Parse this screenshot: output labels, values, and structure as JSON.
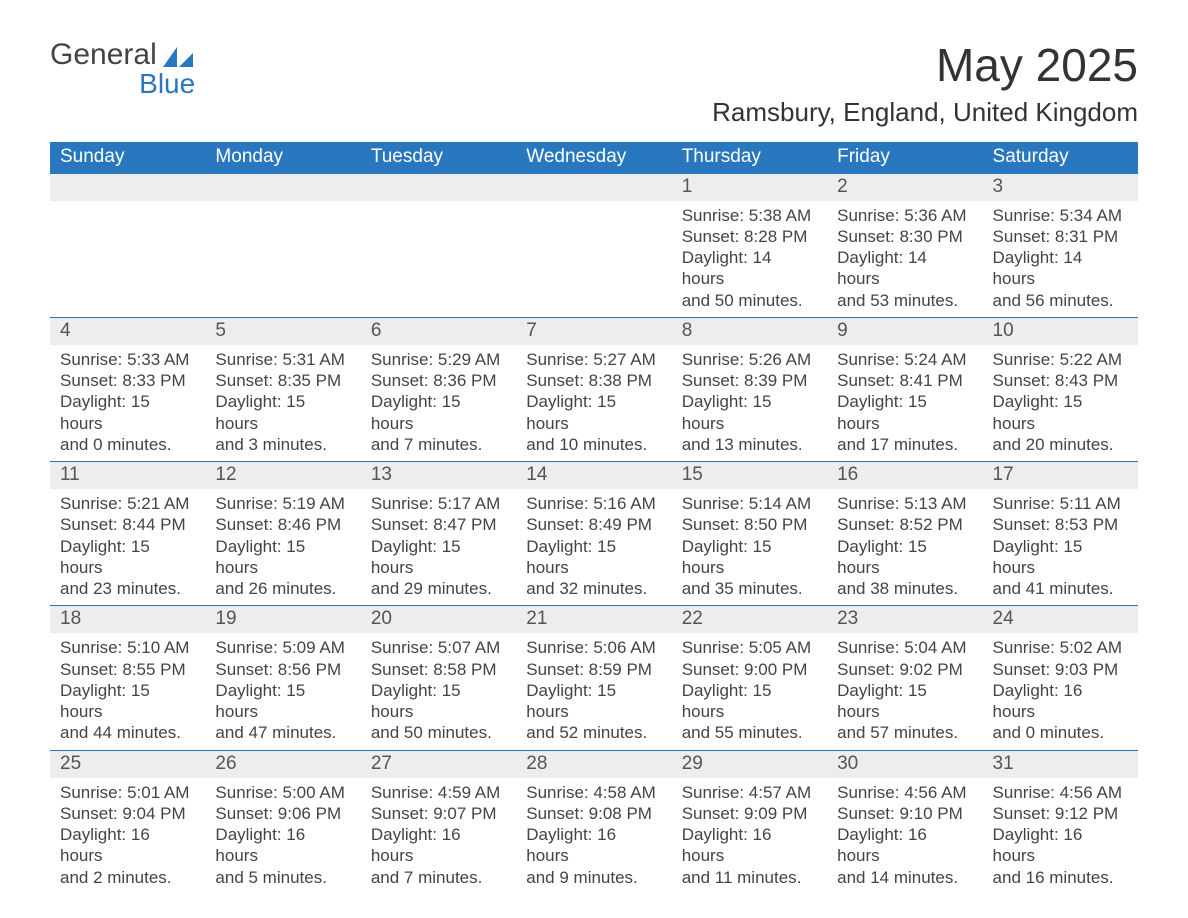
{
  "logo": {
    "word1": "General",
    "word2": "Blue"
  },
  "title": "May 2025",
  "location": "Ramsbury, England, United Kingdom",
  "colors": {
    "header_bg": "#2978bf",
    "header_text": "#ffffff",
    "daynum_bg": "#eceded",
    "body_text": "#444444",
    "rule": "#2978bf",
    "logo_blue": "#2978bf"
  },
  "weekdays": [
    "Sunday",
    "Monday",
    "Tuesday",
    "Wednesday",
    "Thursday",
    "Friday",
    "Saturday"
  ],
  "weeks": [
    [
      null,
      null,
      null,
      null,
      {
        "n": "1",
        "sunrise": "Sunrise: 5:38 AM",
        "sunset": "Sunset: 8:28 PM",
        "dl1": "Daylight: 14 hours",
        "dl2": "and 50 minutes."
      },
      {
        "n": "2",
        "sunrise": "Sunrise: 5:36 AM",
        "sunset": "Sunset: 8:30 PM",
        "dl1": "Daylight: 14 hours",
        "dl2": "and 53 minutes."
      },
      {
        "n": "3",
        "sunrise": "Sunrise: 5:34 AM",
        "sunset": "Sunset: 8:31 PM",
        "dl1": "Daylight: 14 hours",
        "dl2": "and 56 minutes."
      }
    ],
    [
      {
        "n": "4",
        "sunrise": "Sunrise: 5:33 AM",
        "sunset": "Sunset: 8:33 PM",
        "dl1": "Daylight: 15 hours",
        "dl2": "and 0 minutes."
      },
      {
        "n": "5",
        "sunrise": "Sunrise: 5:31 AM",
        "sunset": "Sunset: 8:35 PM",
        "dl1": "Daylight: 15 hours",
        "dl2": "and 3 minutes."
      },
      {
        "n": "6",
        "sunrise": "Sunrise: 5:29 AM",
        "sunset": "Sunset: 8:36 PM",
        "dl1": "Daylight: 15 hours",
        "dl2": "and 7 minutes."
      },
      {
        "n": "7",
        "sunrise": "Sunrise: 5:27 AM",
        "sunset": "Sunset: 8:38 PM",
        "dl1": "Daylight: 15 hours",
        "dl2": "and 10 minutes."
      },
      {
        "n": "8",
        "sunrise": "Sunrise: 5:26 AM",
        "sunset": "Sunset: 8:39 PM",
        "dl1": "Daylight: 15 hours",
        "dl2": "and 13 minutes."
      },
      {
        "n": "9",
        "sunrise": "Sunrise: 5:24 AM",
        "sunset": "Sunset: 8:41 PM",
        "dl1": "Daylight: 15 hours",
        "dl2": "and 17 minutes."
      },
      {
        "n": "10",
        "sunrise": "Sunrise: 5:22 AM",
        "sunset": "Sunset: 8:43 PM",
        "dl1": "Daylight: 15 hours",
        "dl2": "and 20 minutes."
      }
    ],
    [
      {
        "n": "11",
        "sunrise": "Sunrise: 5:21 AM",
        "sunset": "Sunset: 8:44 PM",
        "dl1": "Daylight: 15 hours",
        "dl2": "and 23 minutes."
      },
      {
        "n": "12",
        "sunrise": "Sunrise: 5:19 AM",
        "sunset": "Sunset: 8:46 PM",
        "dl1": "Daylight: 15 hours",
        "dl2": "and 26 minutes."
      },
      {
        "n": "13",
        "sunrise": "Sunrise: 5:17 AM",
        "sunset": "Sunset: 8:47 PM",
        "dl1": "Daylight: 15 hours",
        "dl2": "and 29 minutes."
      },
      {
        "n": "14",
        "sunrise": "Sunrise: 5:16 AM",
        "sunset": "Sunset: 8:49 PM",
        "dl1": "Daylight: 15 hours",
        "dl2": "and 32 minutes."
      },
      {
        "n": "15",
        "sunrise": "Sunrise: 5:14 AM",
        "sunset": "Sunset: 8:50 PM",
        "dl1": "Daylight: 15 hours",
        "dl2": "and 35 minutes."
      },
      {
        "n": "16",
        "sunrise": "Sunrise: 5:13 AM",
        "sunset": "Sunset: 8:52 PM",
        "dl1": "Daylight: 15 hours",
        "dl2": "and 38 minutes."
      },
      {
        "n": "17",
        "sunrise": "Sunrise: 5:11 AM",
        "sunset": "Sunset: 8:53 PM",
        "dl1": "Daylight: 15 hours",
        "dl2": "and 41 minutes."
      }
    ],
    [
      {
        "n": "18",
        "sunrise": "Sunrise: 5:10 AM",
        "sunset": "Sunset: 8:55 PM",
        "dl1": "Daylight: 15 hours",
        "dl2": "and 44 minutes."
      },
      {
        "n": "19",
        "sunrise": "Sunrise: 5:09 AM",
        "sunset": "Sunset: 8:56 PM",
        "dl1": "Daylight: 15 hours",
        "dl2": "and 47 minutes."
      },
      {
        "n": "20",
        "sunrise": "Sunrise: 5:07 AM",
        "sunset": "Sunset: 8:58 PM",
        "dl1": "Daylight: 15 hours",
        "dl2": "and 50 minutes."
      },
      {
        "n": "21",
        "sunrise": "Sunrise: 5:06 AM",
        "sunset": "Sunset: 8:59 PM",
        "dl1": "Daylight: 15 hours",
        "dl2": "and 52 minutes."
      },
      {
        "n": "22",
        "sunrise": "Sunrise: 5:05 AM",
        "sunset": "Sunset: 9:00 PM",
        "dl1": "Daylight: 15 hours",
        "dl2": "and 55 minutes."
      },
      {
        "n": "23",
        "sunrise": "Sunrise: 5:04 AM",
        "sunset": "Sunset: 9:02 PM",
        "dl1": "Daylight: 15 hours",
        "dl2": "and 57 minutes."
      },
      {
        "n": "24",
        "sunrise": "Sunrise: 5:02 AM",
        "sunset": "Sunset: 9:03 PM",
        "dl1": "Daylight: 16 hours",
        "dl2": "and 0 minutes."
      }
    ],
    [
      {
        "n": "25",
        "sunrise": "Sunrise: 5:01 AM",
        "sunset": "Sunset: 9:04 PM",
        "dl1": "Daylight: 16 hours",
        "dl2": "and 2 minutes."
      },
      {
        "n": "26",
        "sunrise": "Sunrise: 5:00 AM",
        "sunset": "Sunset: 9:06 PM",
        "dl1": "Daylight: 16 hours",
        "dl2": "and 5 minutes."
      },
      {
        "n": "27",
        "sunrise": "Sunrise: 4:59 AM",
        "sunset": "Sunset: 9:07 PM",
        "dl1": "Daylight: 16 hours",
        "dl2": "and 7 minutes."
      },
      {
        "n": "28",
        "sunrise": "Sunrise: 4:58 AM",
        "sunset": "Sunset: 9:08 PM",
        "dl1": "Daylight: 16 hours",
        "dl2": "and 9 minutes."
      },
      {
        "n": "29",
        "sunrise": "Sunrise: 4:57 AM",
        "sunset": "Sunset: 9:09 PM",
        "dl1": "Daylight: 16 hours",
        "dl2": "and 11 minutes."
      },
      {
        "n": "30",
        "sunrise": "Sunrise: 4:56 AM",
        "sunset": "Sunset: 9:10 PM",
        "dl1": "Daylight: 16 hours",
        "dl2": "and 14 minutes."
      },
      {
        "n": "31",
        "sunrise": "Sunrise: 4:56 AM",
        "sunset": "Sunset: 9:12 PM",
        "dl1": "Daylight: 16 hours",
        "dl2": "and 16 minutes."
      }
    ]
  ]
}
